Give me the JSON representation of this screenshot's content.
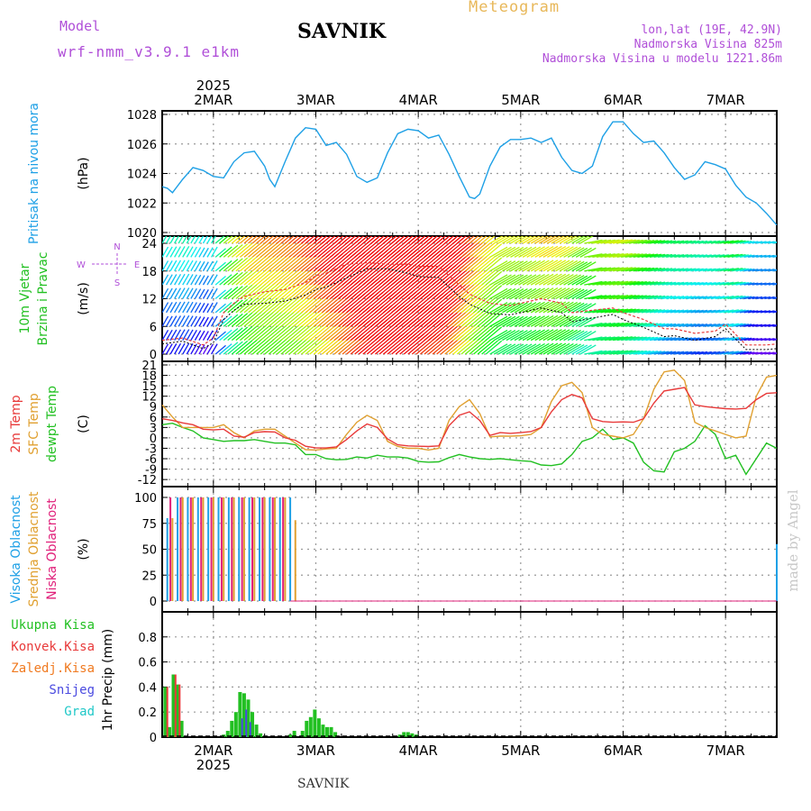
{
  "header": {
    "model_label": "Model",
    "model_name": "wrf-nmm_v3.9.1 e1km",
    "station": "SAVNIK",
    "product": "Meteogram",
    "lonlat": "lon,lat (19E, 42.9N)",
    "elevation": "Nadmorska Visina 825m",
    "model_elevation": "Nadmorska Visina u modelu 1221.86m"
  },
  "footer": {
    "station": "SAVNIK"
  },
  "watermark": "made by Angel",
  "colors": {
    "pressure": "#1ea0e6",
    "temp2m": "#e83a3a",
    "sfctemp": "#e0a030",
    "dewpt": "#22c022",
    "high_cloud": "#1ea0e6",
    "mid_cloud": "#e0a030",
    "low_cloud": "#e0207a",
    "total_precip": "#22c022",
    "convective": "#e83a3a",
    "freezing": "#f07a20",
    "snow": "#4a4ae0",
    "hail": "#20c8c8"
  },
  "chart_data": [
    {
      "type": "line",
      "id": "pressure",
      "ylabel": "(hPa)",
      "side_labels": [
        {
          "text": "Pritisak na nivou mora",
          "color": "#1ea0e6"
        }
      ],
      "ylim": [
        1020,
        1028
      ],
      "yticks": [
        1020,
        1022,
        1024,
        1026,
        1028
      ],
      "top_axis": {
        "year": "2025",
        "labels": [
          "2MAR",
          "3MAR",
          "4MAR",
          "5MAR",
          "6MAR",
          "7MAR"
        ]
      },
      "x_day": [
        1.5,
        1.55,
        1.6,
        1.7,
        1.8,
        1.9,
        2.0,
        2.1,
        2.2,
        2.3,
        2.4,
        2.5,
        2.55,
        2.6,
        2.7,
        2.8,
        2.9,
        3.0,
        3.1,
        3.2,
        3.3,
        3.4,
        3.5,
        3.6,
        3.7,
        3.8,
        3.9,
        4.0,
        4.1,
        4.2,
        4.3,
        4.4,
        4.5,
        4.55,
        4.6,
        4.7,
        4.8,
        4.9,
        5.0,
        5.1,
        5.2,
        5.3,
        5.4,
        5.5,
        5.6,
        5.7,
        5.8,
        5.9,
        6.0,
        6.1,
        6.2,
        6.3,
        6.4,
        6.5,
        6.6,
        6.7,
        6.8,
        6.9,
        7.0,
        7.1,
        7.2,
        7.3,
        7.4,
        7.5
      ],
      "series": [
        {
          "values": [
            1023.1,
            1023.0,
            1022.7,
            1023.6,
            1024.4,
            1024.2,
            1023.8,
            1023.7,
            1024.8,
            1025.4,
            1025.5,
            1024.5,
            1023.6,
            1023.1,
            1024.8,
            1026.4,
            1027.1,
            1027.0,
            1025.9,
            1026.1,
            1025.3,
            1023.8,
            1023.4,
            1023.7,
            1025.4,
            1026.7,
            1027.0,
            1026.9,
            1026.4,
            1026.6,
            1025.3,
            1023.8,
            1022.4,
            1022.3,
            1022.6,
            1024.5,
            1025.8,
            1026.3,
            1026.3,
            1026.4,
            1026.1,
            1026.4,
            1025.1,
            1024.2,
            1024.0,
            1024.5,
            1026.5,
            1027.5,
            1027.5,
            1026.7,
            1026.1,
            1026.2,
            1025.4,
            1024.4,
            1023.6,
            1023.9,
            1024.8,
            1024.6,
            1024.3,
            1023.2,
            1022.4,
            1022.0,
            1021.3,
            1020.5
          ]
        }
      ]
    },
    {
      "type": "line",
      "id": "wind",
      "ylabel": "(m/s)",
      "side_labels": [
        {
          "text": "10m Vjetar",
          "color": "#22c022"
        },
        {
          "text": "Brzina i Pravac",
          "color": "#22c022"
        }
      ],
      "compass": {
        "n": "N",
        "s": "S",
        "w": "W",
        "e": "E"
      },
      "ylim": [
        0,
        24
      ],
      "yticks": [
        0,
        6,
        12,
        18,
        24
      ],
      "x_day": [
        1.5,
        1.7,
        1.9,
        2.0,
        2.1,
        2.2,
        2.3,
        2.5,
        2.7,
        2.9,
        3.0,
        3.1,
        3.3,
        3.5,
        3.7,
        3.9,
        4.0,
        4.2,
        4.4,
        4.5,
        4.7,
        4.9,
        5.0,
        5.2,
        5.4,
        5.5,
        5.7,
        5.9,
        6.0,
        6.2,
        6.4,
        6.5,
        6.7,
        6.9,
        7.0,
        7.2,
        7.4,
        7.5
      ],
      "series": [
        {
          "name": "speed",
          "values": [
            2.2,
            2.8,
            1.2,
            2.5,
            7.5,
            9.5,
            10.8,
            11.0,
            11.5,
            12.8,
            14.0,
            14.5,
            16.5,
            18.5,
            18.5,
            17.5,
            16.8,
            16.6,
            12.5,
            10.8,
            8.8,
            8.5,
            9.0,
            10.0,
            9.0,
            7.0,
            7.8,
            8.6,
            7.5,
            5.8,
            3.8,
            4.0,
            3.0,
            3.8,
            5.5,
            1.0,
            1.0,
            1.2
          ]
        },
        {
          "name": "gust",
          "values": [
            3.0,
            3.5,
            2.0,
            3.5,
            9.0,
            11.0,
            12.5,
            13.5,
            14.0,
            15.5,
            17.0,
            17.5,
            19.5,
            19.8,
            19.5,
            19.5,
            19.0,
            19.0,
            15.0,
            13.0,
            11.0,
            10.5,
            11.0,
            12.0,
            11.0,
            9.0,
            9.5,
            10.0,
            9.0,
            7.5,
            5.5,
            5.5,
            4.5,
            5.0,
            6.5,
            2.0,
            2.0,
            2.2
          ]
        }
      ]
    },
    {
      "type": "line",
      "id": "temperature",
      "ylabel": "(C)",
      "side_labels": [
        {
          "text": "2m Temp",
          "color": "#e83a3a"
        },
        {
          "text": "SFC Temp",
          "color": "#e0a030"
        },
        {
          "text": "dewpt Temp",
          "color": "#22c022"
        }
      ],
      "ylim": [
        -13,
        21
      ],
      "yticks": [
        -12,
        -9,
        -6,
        -3,
        0,
        3,
        6,
        9,
        12,
        15,
        18,
        21
      ],
      "x_day": [
        1.5,
        1.6,
        1.7,
        1.8,
        1.9,
        2.0,
        2.1,
        2.2,
        2.3,
        2.4,
        2.5,
        2.6,
        2.7,
        2.8,
        2.9,
        3.0,
        3.1,
        3.2,
        3.3,
        3.4,
        3.5,
        3.6,
        3.7,
        3.8,
        3.9,
        4.0,
        4.1,
        4.2,
        4.3,
        4.4,
        4.5,
        4.6,
        4.7,
        4.8,
        4.9,
        5.0,
        5.1,
        5.2,
        5.3,
        5.4,
        5.5,
        5.6,
        5.7,
        5.8,
        5.9,
        6.0,
        6.1,
        6.2,
        6.3,
        6.4,
        6.5,
        6.6,
        6.7,
        6.8,
        6.9,
        7.0,
        7.1,
        7.2,
        7.3,
        7.4,
        7.5
      ],
      "series": [
        {
          "name": "2m Temp",
          "values": [
            5.5,
            5.0,
            4.3,
            3.8,
            2.5,
            2.3,
            2.5,
            0.5,
            0.2,
            1.5,
            1.8,
            1.7,
            0.0,
            -0.7,
            -2.4,
            -2.9,
            -2.9,
            -2.6,
            -0.5,
            2.0,
            4.0,
            3.0,
            -0.3,
            -2.0,
            -2.3,
            -2.4,
            -2.5,
            -2.3,
            3.5,
            6.5,
            7.5,
            5.0,
            0.7,
            1.5,
            1.3,
            1.5,
            1.8,
            3.0,
            7.5,
            11.0,
            12.5,
            11.5,
            5.5,
            4.7,
            4.5,
            4.6,
            4.5,
            5.5,
            10.0,
            13.5,
            14.0,
            14.5,
            9.5,
            9.0,
            8.7,
            8.4,
            8.3,
            8.5,
            11.0,
            12.8,
            13.0
          ]
        },
        {
          "name": "SFC Temp",
          "values": [
            9.5,
            6.0,
            3.0,
            3.0,
            3.0,
            3.0,
            3.8,
            1.5,
            0.0,
            2.0,
            2.5,
            2.5,
            0.5,
            -1.5,
            -3.4,
            -3.5,
            -3.2,
            -3.0,
            1.0,
            4.5,
            6.5,
            5.0,
            -1.0,
            -2.5,
            -3.0,
            -3.0,
            -3.5,
            -3.0,
            5.0,
            9.0,
            11.0,
            7.0,
            0.3,
            0.5,
            0.5,
            0.6,
            1.0,
            3.0,
            10.5,
            15.0,
            16.0,
            13.0,
            3.0,
            1.0,
            0.5,
            0.0,
            1.0,
            5.5,
            14.0,
            19.0,
            19.5,
            16.5,
            4.5,
            3.0,
            2.0,
            1.0,
            0.0,
            0.5,
            12.0,
            17.5,
            18.0
          ]
        },
        {
          "name": "dewpt Temp",
          "values": [
            3.8,
            4.2,
            3.0,
            2.0,
            0.0,
            -0.5,
            -1.0,
            -0.8,
            -0.8,
            -0.5,
            -1.0,
            -1.5,
            -1.5,
            -2.0,
            -4.8,
            -4.8,
            -6.0,
            -6.3,
            -6.2,
            -5.5,
            -5.8,
            -5.0,
            -5.5,
            -5.5,
            -5.8,
            -6.8,
            -7.0,
            -6.9,
            -5.7,
            -4.8,
            -5.5,
            -6.0,
            -6.2,
            -6.0,
            -6.3,
            -6.6,
            -6.8,
            -7.8,
            -8.0,
            -7.5,
            -4.8,
            -1.0,
            0.0,
            2.5,
            -0.5,
            0.0,
            -1.5,
            -7.0,
            -9.5,
            -9.8,
            -4.0,
            -3.0,
            -1.0,
            3.5,
            1.0,
            -6.0,
            -5.0,
            -10.5,
            -6.0,
            -1.5,
            -3.0
          ]
        }
      ]
    },
    {
      "type": "bar",
      "id": "clouds",
      "ylabel": "(%)",
      "side_labels": [
        {
          "text": "Visoka Oblacnost",
          "color": "#1ea0e6"
        },
        {
          "text": "Srednja Oblacnost",
          "color": "#e0a030"
        },
        {
          "text": "Niska Oblacnost",
          "color": "#e0207a"
        }
      ],
      "ylim": [
        0,
        100
      ],
      "yticks": [
        0,
        25,
        50,
        75,
        100
      ],
      "series": [
        {
          "name": "Visoka Oblacnost",
          "x_day": [
            1.55,
            1.65,
            1.75,
            1.85,
            1.95,
            2.05,
            2.15,
            2.25,
            2.35,
            2.45,
            2.55,
            2.65,
            2.75,
            7.5
          ],
          "values": [
            80,
            100,
            100,
            100,
            100,
            100,
            100,
            100,
            100,
            100,
            100,
            100,
            100,
            55
          ]
        },
        {
          "name": "Srednja Oblacnost",
          "x_day": [
            1.6,
            1.7,
            1.8,
            1.9,
            2.0,
            2.1,
            2.2,
            2.3,
            2.4,
            2.5,
            2.6,
            2.7,
            2.8
          ],
          "values": [
            80,
            100,
            100,
            100,
            100,
            100,
            100,
            100,
            100,
            100,
            100,
            100,
            78
          ]
        },
        {
          "name": "Niska Oblacnost",
          "x_day": [
            1.58,
            1.68,
            1.78,
            1.88,
            1.98,
            2.08,
            2.18,
            2.28,
            2.38,
            2.48,
            2.58,
            2.68
          ],
          "values": [
            100,
            100,
            100,
            100,
            100,
            100,
            100,
            100,
            100,
            100,
            100,
            100
          ]
        }
      ]
    },
    {
      "type": "bar",
      "id": "precip",
      "ylabel": "1hr Precip (mm)",
      "side_labels": [
        {
          "text": "Ukupna Kisa",
          "color": "#22c022"
        },
        {
          "text": "Konvek.Kisa",
          "color": "#e83a3a"
        },
        {
          "text": "Zaledj.Kisa",
          "color": "#f07a20"
        },
        {
          "text": "Snijeg",
          "color": "#4a4ae0"
        },
        {
          "text": "Grad",
          "color": "#20c8c8"
        }
      ],
      "ylim": [
        0,
        1.0
      ],
      "yticks": [
        0,
        0.2,
        0.4,
        0.6,
        0.8
      ],
      "bottom_axis": {
        "year": "2025",
        "labels": [
          "2MAR",
          "3MAR",
          "4MAR",
          "5MAR",
          "6MAR",
          "7MAR"
        ]
      },
      "series": [
        {
          "name": "Ukupna Kisa",
          "x_day": [
            1.53,
            1.57,
            1.61,
            1.65,
            1.69,
            2.1,
            2.14,
            2.18,
            2.22,
            2.26,
            2.3,
            2.34,
            2.38,
            2.42,
            2.46,
            2.75,
            2.79,
            2.87,
            2.91,
            2.95,
            2.99,
            3.03,
            3.07,
            3.11,
            3.15,
            3.19,
            3.82,
            3.86,
            3.9,
            3.94,
            3.98
          ],
          "values": [
            0.4,
            0.08,
            0.5,
            0.42,
            0.13,
            0.02,
            0.05,
            0.13,
            0.2,
            0.36,
            0.35,
            0.3,
            0.2,
            0.1,
            0.03,
            0.02,
            0.05,
            0.05,
            0.13,
            0.16,
            0.22,
            0.15,
            0.1,
            0.08,
            0.08,
            0.04,
            0.02,
            0.04,
            0.04,
            0.03,
            0.02
          ]
        },
        {
          "name": "Konvek.Kisa",
          "x_day": [
            1.55,
            1.63,
            1.67
          ],
          "values": [
            0.4,
            0.5,
            0.42
          ]
        },
        {
          "name": "Snijeg",
          "x_day": [
            2.28,
            2.32,
            2.36
          ],
          "values": [
            0.15,
            0.22,
            0.12
          ]
        }
      ]
    }
  ]
}
